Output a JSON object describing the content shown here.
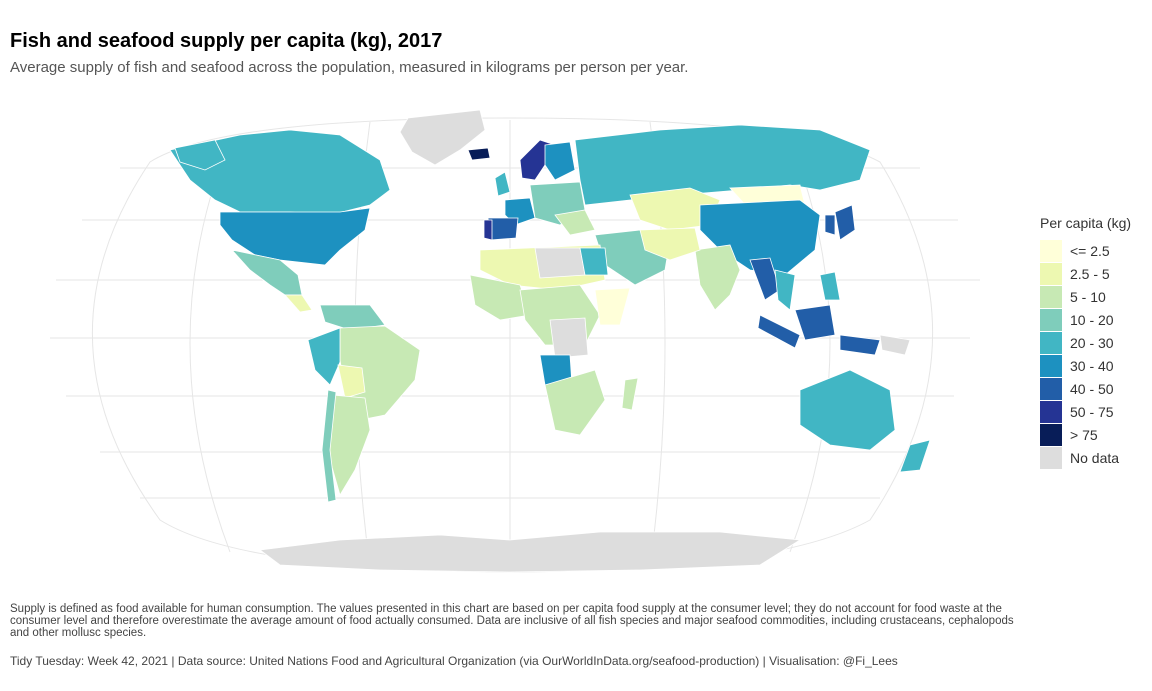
{
  "header": {
    "title": "Fish and seafood supply per capita (kg), 2017",
    "subtitle": "Average supply of fish and seafood across the population, measured in kilograms per person per year."
  },
  "legend": {
    "title": "Per capita (kg)",
    "items": [
      {
        "label": "<= 2.5",
        "color": "#ffffd9"
      },
      {
        "label": "2.5 - 5",
        "color": "#edf8b1"
      },
      {
        "label": "5 - 10",
        "color": "#c7e9b4"
      },
      {
        "label": "10 - 20",
        "color": "#7fcdbb"
      },
      {
        "label": "20 - 30",
        "color": "#41b6c4"
      },
      {
        "label": "30 - 40",
        "color": "#1d91c0"
      },
      {
        "label": "40 - 50",
        "color": "#225ea8"
      },
      {
        "label": "50 - 75",
        "color": "#253494"
      },
      {
        "label": "> 75",
        "color": "#081d58"
      },
      {
        "label": "No data",
        "color": "#dddddd"
      }
    ]
  },
  "footer": {
    "note": "Supply is defined as food available for human consumption. The values presented in this chart are based on per capita food supply at the consumer level; they do not account for food waste at the consumer level and therefore overestimate the average amount of food actually consumed. Data are inclusive of all fish species and major seafood commodities, including crustaceans, cephalopods and other mollusc species.",
    "caption": "Tidy Tuesday: Week 42, 2021 | Data source: United Nations Food and Agricultural Organization (via OurWorldInData.org/seafood-production) | Visualisation: @Fi_Lees"
  }
}
